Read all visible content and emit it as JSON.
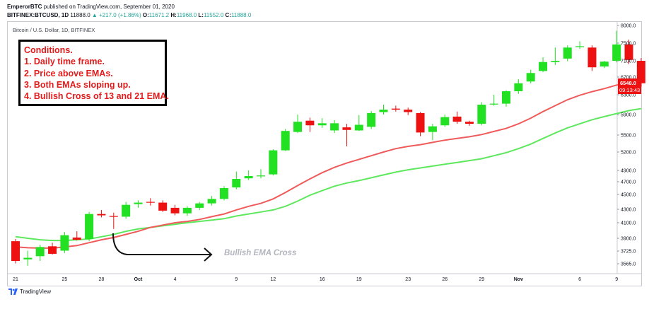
{
  "header": {
    "author": "EmperorBTC",
    "published": "published on TradingView.com, September 01, 2020",
    "symbol": "BITFINEX:BTCUSD, 1D",
    "last": "11888.0",
    "change": "▲ +217.0 (+1.86%)",
    "o_label": "O:",
    "o_value": "11671.2",
    "h_label": "H:",
    "h_value": "11968.0",
    "l_label": "L:",
    "l_value": "11552.0",
    "c_label": "C:",
    "c_value": "11888.0"
  },
  "chart_title": "Bitcoin / U.S. Dollar, 1D, BITFINEX",
  "conditions": {
    "title": "Conditions.",
    "items": [
      "1. Daily time frame.",
      "2. Price above EMAs.",
      "3. Both EMAs sloping up.",
      "4. Bullish Cross of 13 and 21 EMA."
    ]
  },
  "annotation": "Bullish EMA Cross",
  "price_tag": {
    "value": "6548.0",
    "countdown": "09:13:43"
  },
  "footer": {
    "brand": "TradingView"
  },
  "colors": {
    "up": "#22e022",
    "down": "#ee1111",
    "ema13": "#f05a5a",
    "ema21": "#5ee85e",
    "tag_bg": "#ee1111"
  },
  "chart_data": {
    "type": "candlestick",
    "y_ticks": [
      "8000.0",
      "7500.0",
      "7100.0",
      "6700.0",
      "6300.0",
      "5900.0",
      "5500.0",
      "5200.0",
      "4900.0",
      "4700.0",
      "4500.0",
      "4300.0",
      "4100.0",
      "3900.0",
      "3725.0",
      "3565.0"
    ],
    "x_ticks": [
      {
        "label": "21",
        "index": 0
      },
      {
        "label": "25",
        "index": 4
      },
      {
        "label": "28",
        "index": 7
      },
      {
        "label": "Oct",
        "index": 10
      },
      {
        "label": "4",
        "index": 13
      },
      {
        "label": "9",
        "index": 18
      },
      {
        "label": "12",
        "index": 21
      },
      {
        "label": "16",
        "index": 25
      },
      {
        "label": "19",
        "index": 28
      },
      {
        "label": "23",
        "index": 32
      },
      {
        "label": "26",
        "index": 35
      },
      {
        "label": "29",
        "index": 38
      },
      {
        "label": "Nov",
        "index": 41
      },
      {
        "label": "6",
        "index": 46
      },
      {
        "label": "9",
        "index": 49
      }
    ],
    "candles": [
      {
        "o": 3860,
        "h": 3890,
        "l": 3570,
        "c": 3600
      },
      {
        "o": 3620,
        "h": 3730,
        "l": 3540,
        "c": 3640
      },
      {
        "o": 3660,
        "h": 3810,
        "l": 3600,
        "c": 3780
      },
      {
        "o": 3790,
        "h": 3840,
        "l": 3680,
        "c": 3690
      },
      {
        "o": 3730,
        "h": 3980,
        "l": 3700,
        "c": 3940
      },
      {
        "o": 3910,
        "h": 3990,
        "l": 3870,
        "c": 3880
      },
      {
        "o": 3890,
        "h": 4260,
        "l": 3860,
        "c": 4230
      },
      {
        "o": 4230,
        "h": 4290,
        "l": 4180,
        "c": 4210
      },
      {
        "o": 4200,
        "h": 4250,
        "l": 4020,
        "c": 4190
      },
      {
        "o": 4190,
        "h": 4400,
        "l": 4160,
        "c": 4360
      },
      {
        "o": 4370,
        "h": 4420,
        "l": 4320,
        "c": 4390
      },
      {
        "o": 4400,
        "h": 4450,
        "l": 4350,
        "c": 4390
      },
      {
        "o": 4390,
        "h": 4420,
        "l": 4260,
        "c": 4280
      },
      {
        "o": 4320,
        "h": 4360,
        "l": 4210,
        "c": 4240
      },
      {
        "o": 4240,
        "h": 4340,
        "l": 4200,
        "c": 4320
      },
      {
        "o": 4320,
        "h": 4400,
        "l": 4290,
        "c": 4380
      },
      {
        "o": 4380,
        "h": 4480,
        "l": 4350,
        "c": 4440
      },
      {
        "o": 4440,
        "h": 4630,
        "l": 4420,
        "c": 4600
      },
      {
        "o": 4610,
        "h": 4880,
        "l": 4580,
        "c": 4750
      },
      {
        "o": 4760,
        "h": 4900,
        "l": 4730,
        "c": 4800
      },
      {
        "o": 4800,
        "h": 4920,
        "l": 4760,
        "c": 4810
      },
      {
        "o": 4830,
        "h": 5250,
        "l": 4810,
        "c": 5230
      },
      {
        "o": 5230,
        "h": 5620,
        "l": 5220,
        "c": 5580
      },
      {
        "o": 5560,
        "h": 5900,
        "l": 5540,
        "c": 5760
      },
      {
        "o": 5780,
        "h": 5840,
        "l": 5560,
        "c": 5690
      },
      {
        "o": 5690,
        "h": 5830,
        "l": 5640,
        "c": 5730
      },
      {
        "o": 5590,
        "h": 5790,
        "l": 5540,
        "c": 5730
      },
      {
        "o": 5650,
        "h": 5720,
        "l": 5300,
        "c": 5600
      },
      {
        "o": 5590,
        "h": 5890,
        "l": 5580,
        "c": 5700
      },
      {
        "o": 5660,
        "h": 5970,
        "l": 5620,
        "c": 5930
      },
      {
        "o": 5950,
        "h": 6100,
        "l": 5900,
        "c": 6000
      },
      {
        "o": 6020,
        "h": 6080,
        "l": 5960,
        "c": 6000
      },
      {
        "o": 6000,
        "h": 6040,
        "l": 5890,
        "c": 5950
      },
      {
        "o": 5930,
        "h": 5950,
        "l": 5480,
        "c": 5550
      },
      {
        "o": 5560,
        "h": 5720,
        "l": 5410,
        "c": 5670
      },
      {
        "o": 5690,
        "h": 5900,
        "l": 5660,
        "c": 5850
      },
      {
        "o": 5860,
        "h": 5960,
        "l": 5720,
        "c": 5760
      },
      {
        "o": 5760,
        "h": 5780,
        "l": 5680,
        "c": 5720
      },
      {
        "o": 5720,
        "h": 6150,
        "l": 5690,
        "c": 6100
      },
      {
        "o": 6120,
        "h": 6300,
        "l": 6080,
        "c": 6120
      },
      {
        "o": 6120,
        "h": 6400,
        "l": 6060,
        "c": 6380
      },
      {
        "o": 6380,
        "h": 6650,
        "l": 6320,
        "c": 6560
      },
      {
        "o": 6600,
        "h": 6880,
        "l": 6560,
        "c": 6800
      },
      {
        "o": 6850,
        "h": 7180,
        "l": 6820,
        "c": 7070
      },
      {
        "o": 7070,
        "h": 7400,
        "l": 7000,
        "c": 7100
      },
      {
        "o": 7150,
        "h": 7450,
        "l": 7090,
        "c": 7400
      },
      {
        "o": 7420,
        "h": 7550,
        "l": 7370,
        "c": 7430
      },
      {
        "o": 7400,
        "h": 7450,
        "l": 6850,
        "c": 6940
      },
      {
        "o": 6960,
        "h": 7100,
        "l": 6920,
        "c": 7080
      },
      {
        "o": 7100,
        "h": 7850,
        "l": 7060,
        "c": 7470
      },
      {
        "o": 7470,
        "h": 7600,
        "l": 7020,
        "c": 7120
      },
      {
        "o": 7100,
        "h": 7160,
        "l": 6480,
        "c": 6560
      }
    ],
    "ema13": [
      3780,
      3770,
      3765,
      3765,
      3780,
      3800,
      3840,
      3880,
      3910,
      3950,
      3990,
      4040,
      4070,
      4100,
      4120,
      4150,
      4190,
      4230,
      4290,
      4340,
      4380,
      4440,
      4530,
      4640,
      4750,
      4860,
      4950,
      5020,
      5080,
      5140,
      5200,
      5260,
      5300,
      5330,
      5370,
      5410,
      5440,
      5470,
      5510,
      5570,
      5630,
      5720,
      5830,
      5960,
      6080,
      6200,
      6290,
      6370,
      6440,
      6520,
      6580,
      6600
    ],
    "ema21": [
      3920,
      3900,
      3880,
      3870,
      3870,
      3880,
      3890,
      3920,
      3950,
      3990,
      4020,
      4040,
      4060,
      4080,
      4100,
      4120,
      4140,
      4160,
      4200,
      4230,
      4260,
      4290,
      4340,
      4410,
      4490,
      4560,
      4630,
      4680,
      4720,
      4770,
      4820,
      4870,
      4910,
      4940,
      4970,
      5000,
      5030,
      5060,
      5090,
      5140,
      5190,
      5260,
      5340,
      5440,
      5540,
      5640,
      5720,
      5800,
      5860,
      5920,
      5980,
      6020
    ]
  }
}
